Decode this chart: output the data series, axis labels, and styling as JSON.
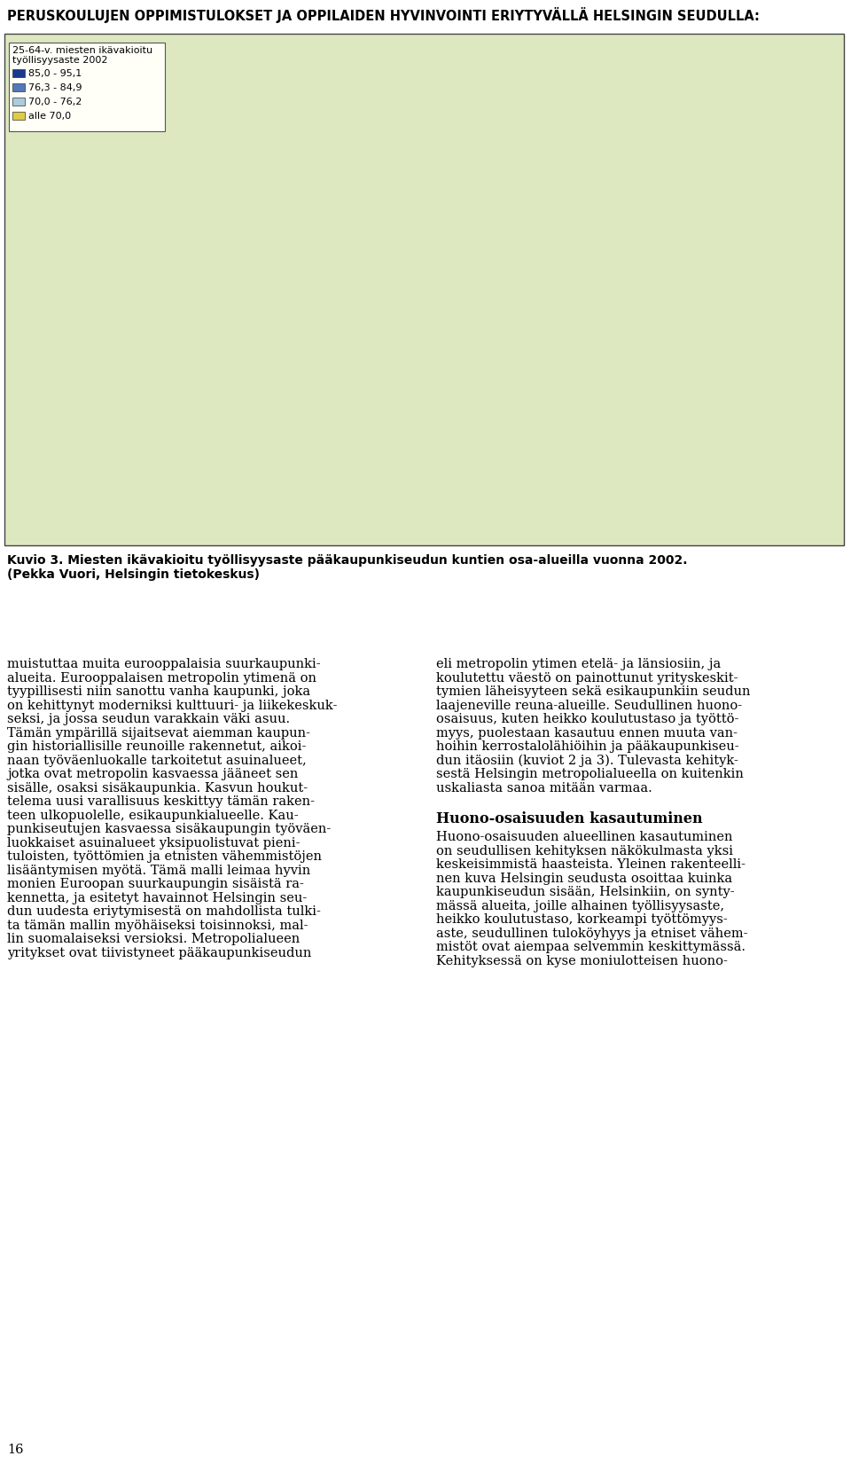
{
  "title": "PERUSKOULUJEN OPPIMISTULOKSET JA OPPILAIDEN HYVINVOINTI ERIYTYVÄLLÄ HELSINGIN SEUDULLA:",
  "figure_caption_line1": "Kuvio 3. Miesten ikävakioitu työllisyysaste pääkaupunkiseudun kuntien osa-alueilla vuonna 2002.",
  "figure_caption_line2": "(Pekka Vuori, Helsingin tietokeskus)",
  "legend_title_line1": "25-64-v. miesten ikävakioitu",
  "legend_title_line2": "työllisyysaste 2002",
  "legend_items": [
    {
      "label": "85,0 - 95,1",
      "color": "#1a3a8f"
    },
    {
      "label": "76,3 - 84,9",
      "color": "#5577bb"
    },
    {
      "label": "70,0 - 76,2",
      "color": "#aaccdd"
    },
    {
      "label": "alle 70,0",
      "color": "#ddcc44"
    }
  ],
  "text_left_lines": [
    "muistuttaa muita eurooppalaisia suurkaupunki-",
    "alueita. Eurooppalaisen metropolin ytimenä on",
    "tyypillisesti niin sanottu vanha kaupunki, joka",
    "on kehittynyt moderniksi kulttuuri- ja liikekeskuk-",
    "seksi, ja jossa seudun varakkain väki asuu.",
    "Tämän ympärillä sijaitsevat aiemman kaupun-",
    "gin historiallisille reunoille rakennetut, aikoi-",
    "naan työväenluokalle tarkoitetut asuinalueet,",
    "jotka ovat metropolin kasvaessa jääneet sen",
    "sisälle, osaksi sisäkaupunkia. Kasvun houkut-",
    "telema uusi varallisuus keskittyy tämän raken-",
    "teen ulkopuolelle, esikaupunkialueelle. Kau-",
    "punkiseutujen kasvaessa sisäkaupungin työväen-",
    "luokkaiset asuinalueet yksipuolistuvat pieni-",
    "tuloisten, työttömien ja etnisten vähemmistöjen",
    "lisääntymisen myötä. Tämä malli leimaa hyvin",
    "monien Euroopan suurkaupungin sisäistä ra-",
    "kennetta, ja esitetyt havainnot Helsingin seu-",
    "dun uudesta eriytymisestä on mahdollista tulki-",
    "ta tämän mallin myöhäiseksi toisinnoksi, mal-",
    "lin suomalaiseksi versioksi. Metropolialueen",
    "yritykset ovat tiivistyneet pääkaupunkiseudun"
  ],
  "text_right_lines": [
    "eli metropolin ytimen etelä- ja länsiosiin, ja",
    "koulutettu väestö on painottunut yrityskeskit-",
    "tymien läheisyyteen sekä esikaupunkiin seudun",
    "laajeneville reuna-alueille. Seudullinen huono-",
    "osaisuus, kuten heikko koulutustaso ja työttö-",
    "myys, puolestaan kasautuu ennen muuta van-",
    "hoihin kerrostalolähiöihin ja pääkaupunkiseu-",
    "dun itäosiin (kuviot 2 ja 3). Tulevasta kehityk-",
    "sestä Helsingin metropolialueella on kuitenkin",
    "uskaliasta sanoa mitään varmaa."
  ],
  "section_heading": "Huono-osaisuuden kasautuminen",
  "text_right2_lines": [
    "Huono-osaisuuden alueellinen kasautuminen",
    "on seudullisen kehityksen näkökulmasta yksi",
    "keskeisimmistä haasteista. Yleinen rakenteelli-",
    "nen kuva Helsingin seudusta osoittaa kuinka",
    "kaupunkiseudun sisään, Helsinkiin, on synty-",
    "mässä alueita, joille alhainen työllisyysaste,",
    "heikko koulutustaso, korkeampi työttömyys-",
    "aste, seudullinen tuloköyhyys ja etniset vähem-",
    "mistöt ovat aiempaa selvemmin keskittymässä.",
    "Kehityksessä on kyse moniulotteisen huono-"
  ],
  "page_number": "16",
  "bg_color": "#ffffff",
  "map_bg_color": "#dde8c0",
  "map_border_color": "#444444",
  "legend_bg_color": "#fffff8",
  "title_fontsize": 10.5,
  "caption_fontsize": 10.0,
  "body_fontsize": 10.5,
  "legend_fontsize": 8.0,
  "heading_fontsize": 11.5,
  "page_num_fontsize": 10.5
}
